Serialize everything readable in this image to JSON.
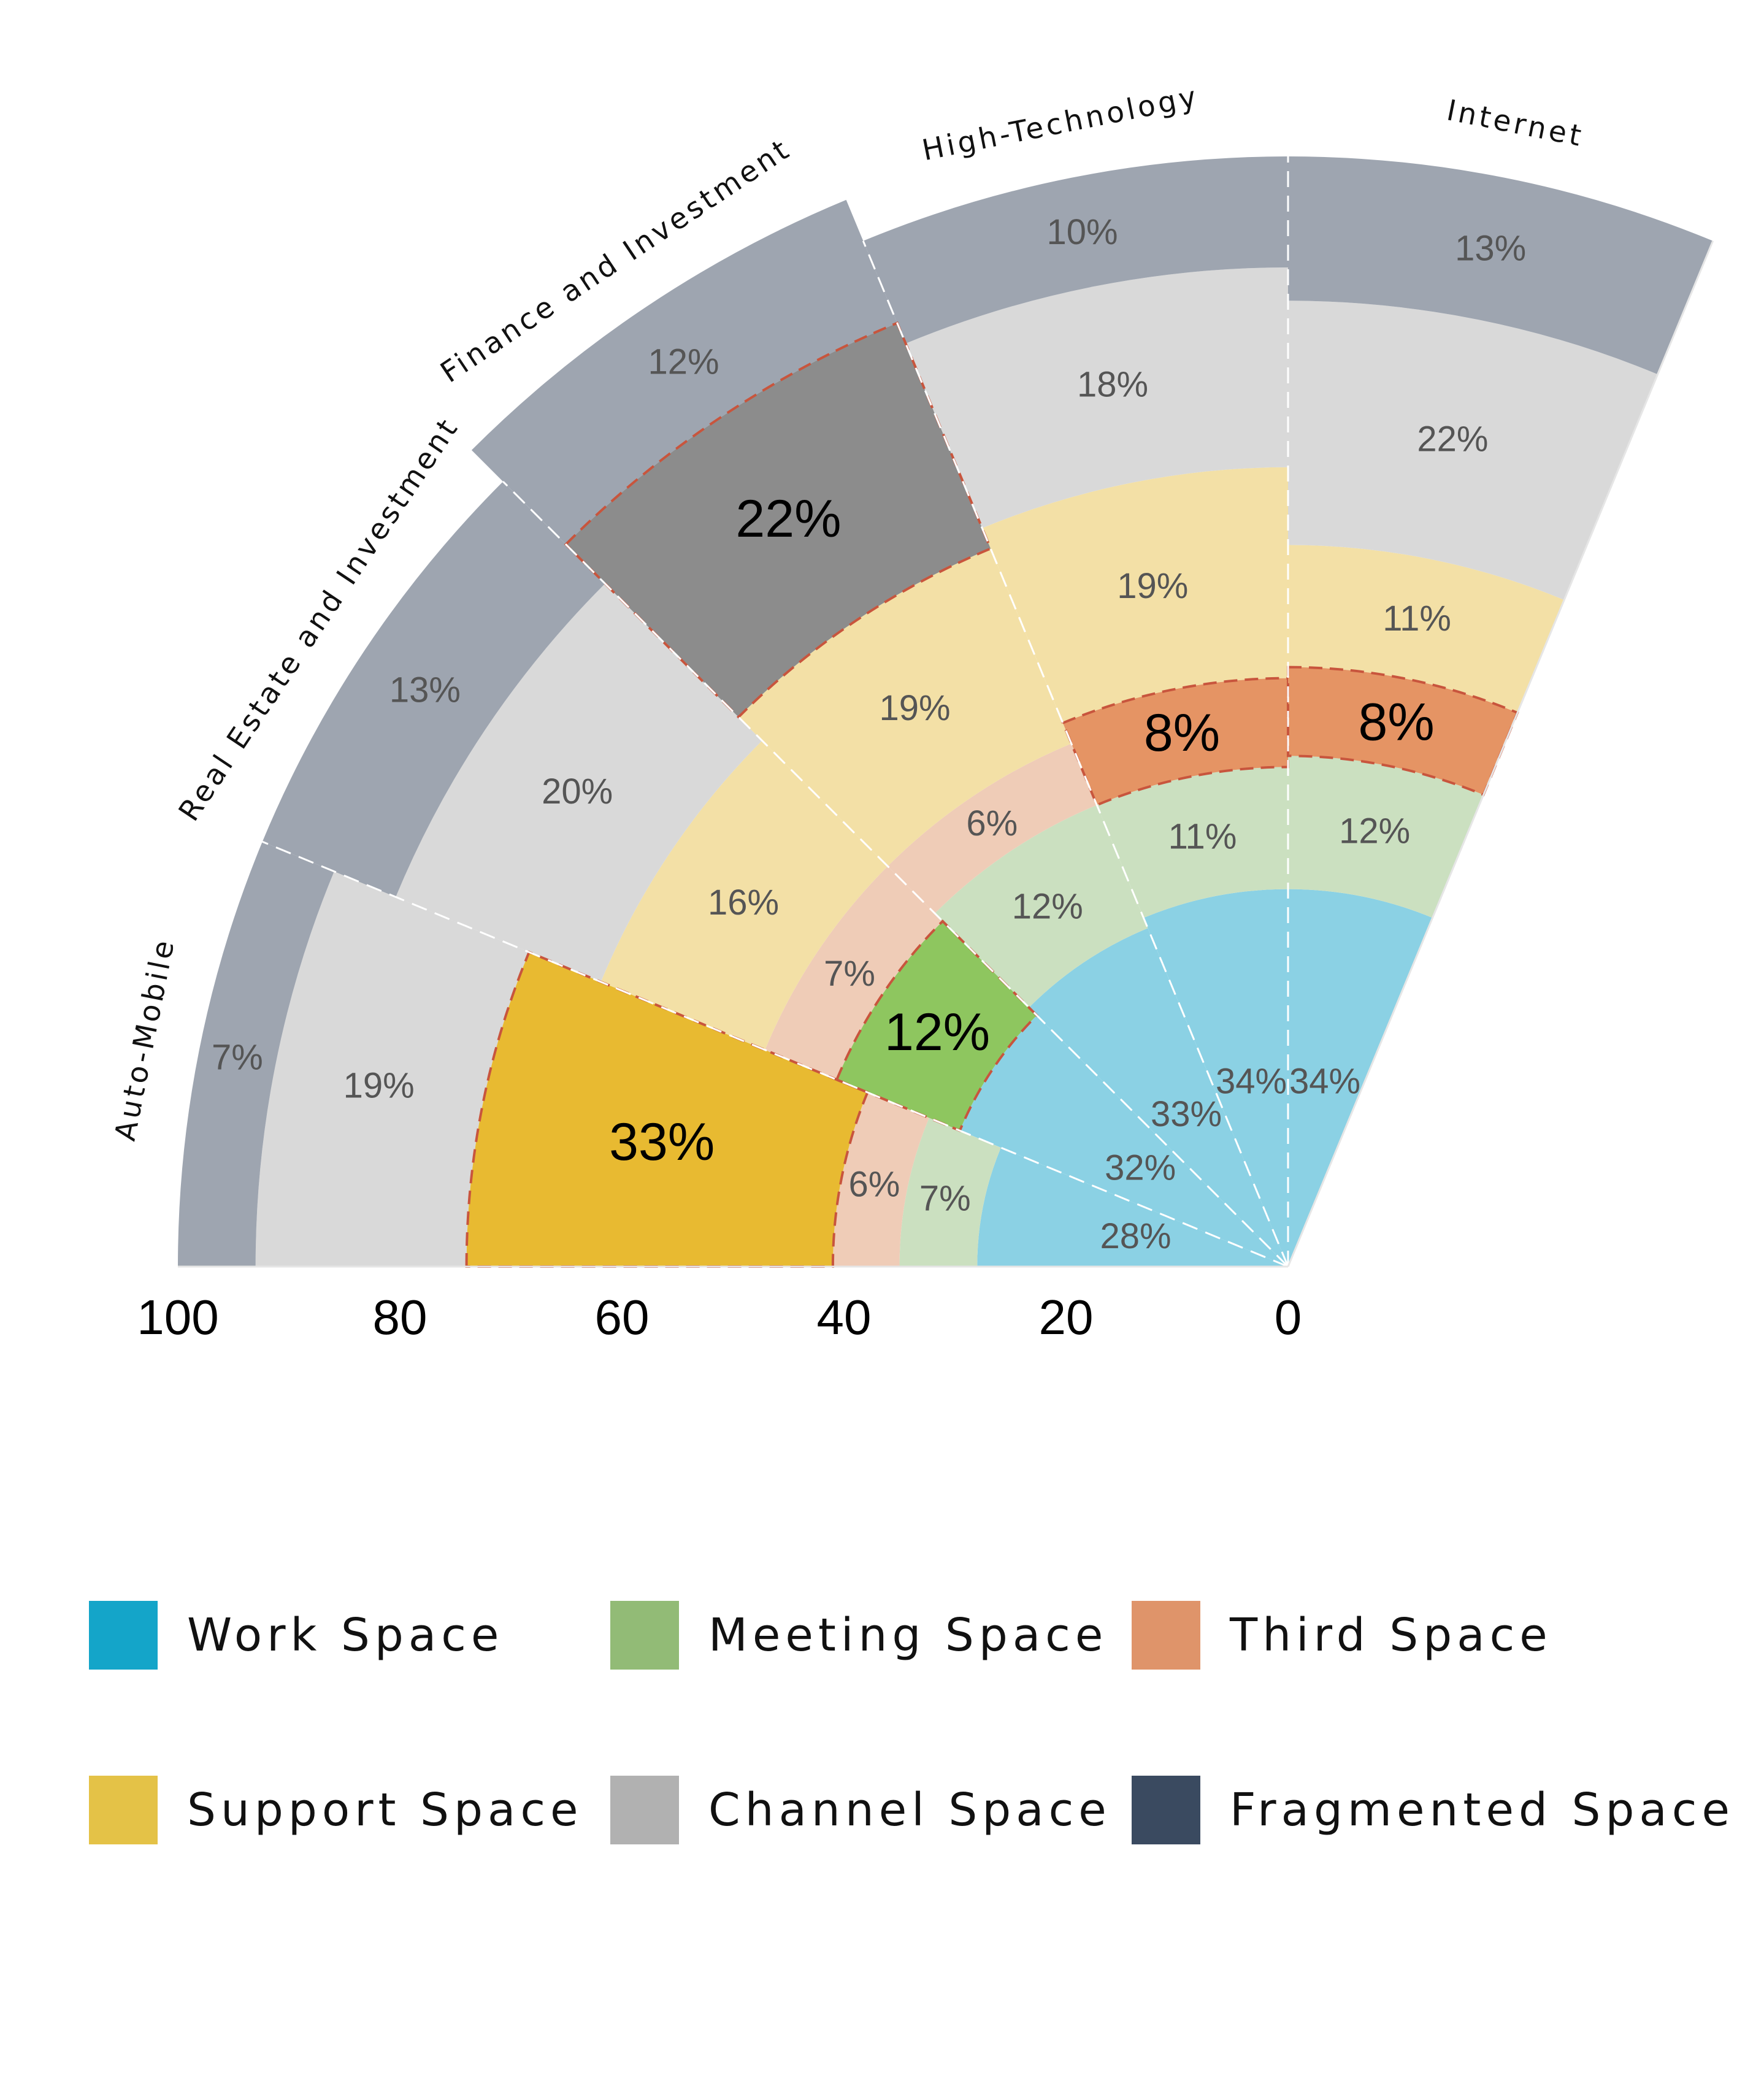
{
  "chart_data": {
    "type": "radial-stacked-bar",
    "categories": [
      "Auto-Mobile",
      "Real Estate and Investment",
      "Finance and Investment",
      "High-Technology",
      "Internet"
    ],
    "series": [
      {
        "name": "Work Space",
        "values": [
          28,
          32,
          33,
          34,
          34
        ]
      },
      {
        "name": "Meeting Space",
        "values": [
          7,
          12,
          12,
          11,
          12
        ]
      },
      {
        "name": "Third Space",
        "values": [
          6,
          7,
          6,
          8,
          8
        ]
      },
      {
        "name": "Support Space",
        "values": [
          33,
          16,
          19,
          19,
          11
        ]
      },
      {
        "name": "Channel Space",
        "values": [
          19,
          20,
          22,
          18,
          22
        ]
      },
      {
        "name": "Fragmented Space",
        "values": [
          7,
          13,
          12,
          10,
          13
        ]
      }
    ],
    "highlighted": [
      {
        "category": "Auto-Mobile",
        "series": "Support Space"
      },
      {
        "category": "Real Estate and Investment",
        "series": "Meeting Space"
      },
      {
        "category": "Finance and Investment",
        "series": "Channel Space"
      },
      {
        "category": "High-Technology",
        "series": "Third Space"
      },
      {
        "category": "Internet",
        "series": "Third Space"
      }
    ],
    "ticks": [
      "100",
      "80",
      "60",
      "40",
      "20",
      "0"
    ],
    "radial_range": [
      0,
      100
    ],
    "colors": {
      "Work Space": "#8bd1e4",
      "Meeting Space": "#cbe0c0",
      "Third Space": "#efccb7",
      "Support Space": "#f3e0a6",
      "Channel Space": "#d9d9d9",
      "Fragmented Space": "#9ea5b0"
    },
    "highlight_colors": {
      "Meeting Space": "#8ec65f",
      "Third Space": "#e59464",
      "Support Space": "#e8ba31",
      "Channel Space": "#8c8c8c"
    }
  },
  "legend": [
    {
      "label": "Work Space",
      "color": "#14a5c9"
    },
    {
      "label": "Meeting Space",
      "color": "#92bb76"
    },
    {
      "label": "Third Space",
      "color": "#df946a"
    },
    {
      "label": "Support Space",
      "color": "#e4c247"
    },
    {
      "label": "Channel Space",
      "color": "#b1b1b1"
    },
    {
      "label": "Fragmented Space",
      "color": "#3a4a60"
    }
  ]
}
